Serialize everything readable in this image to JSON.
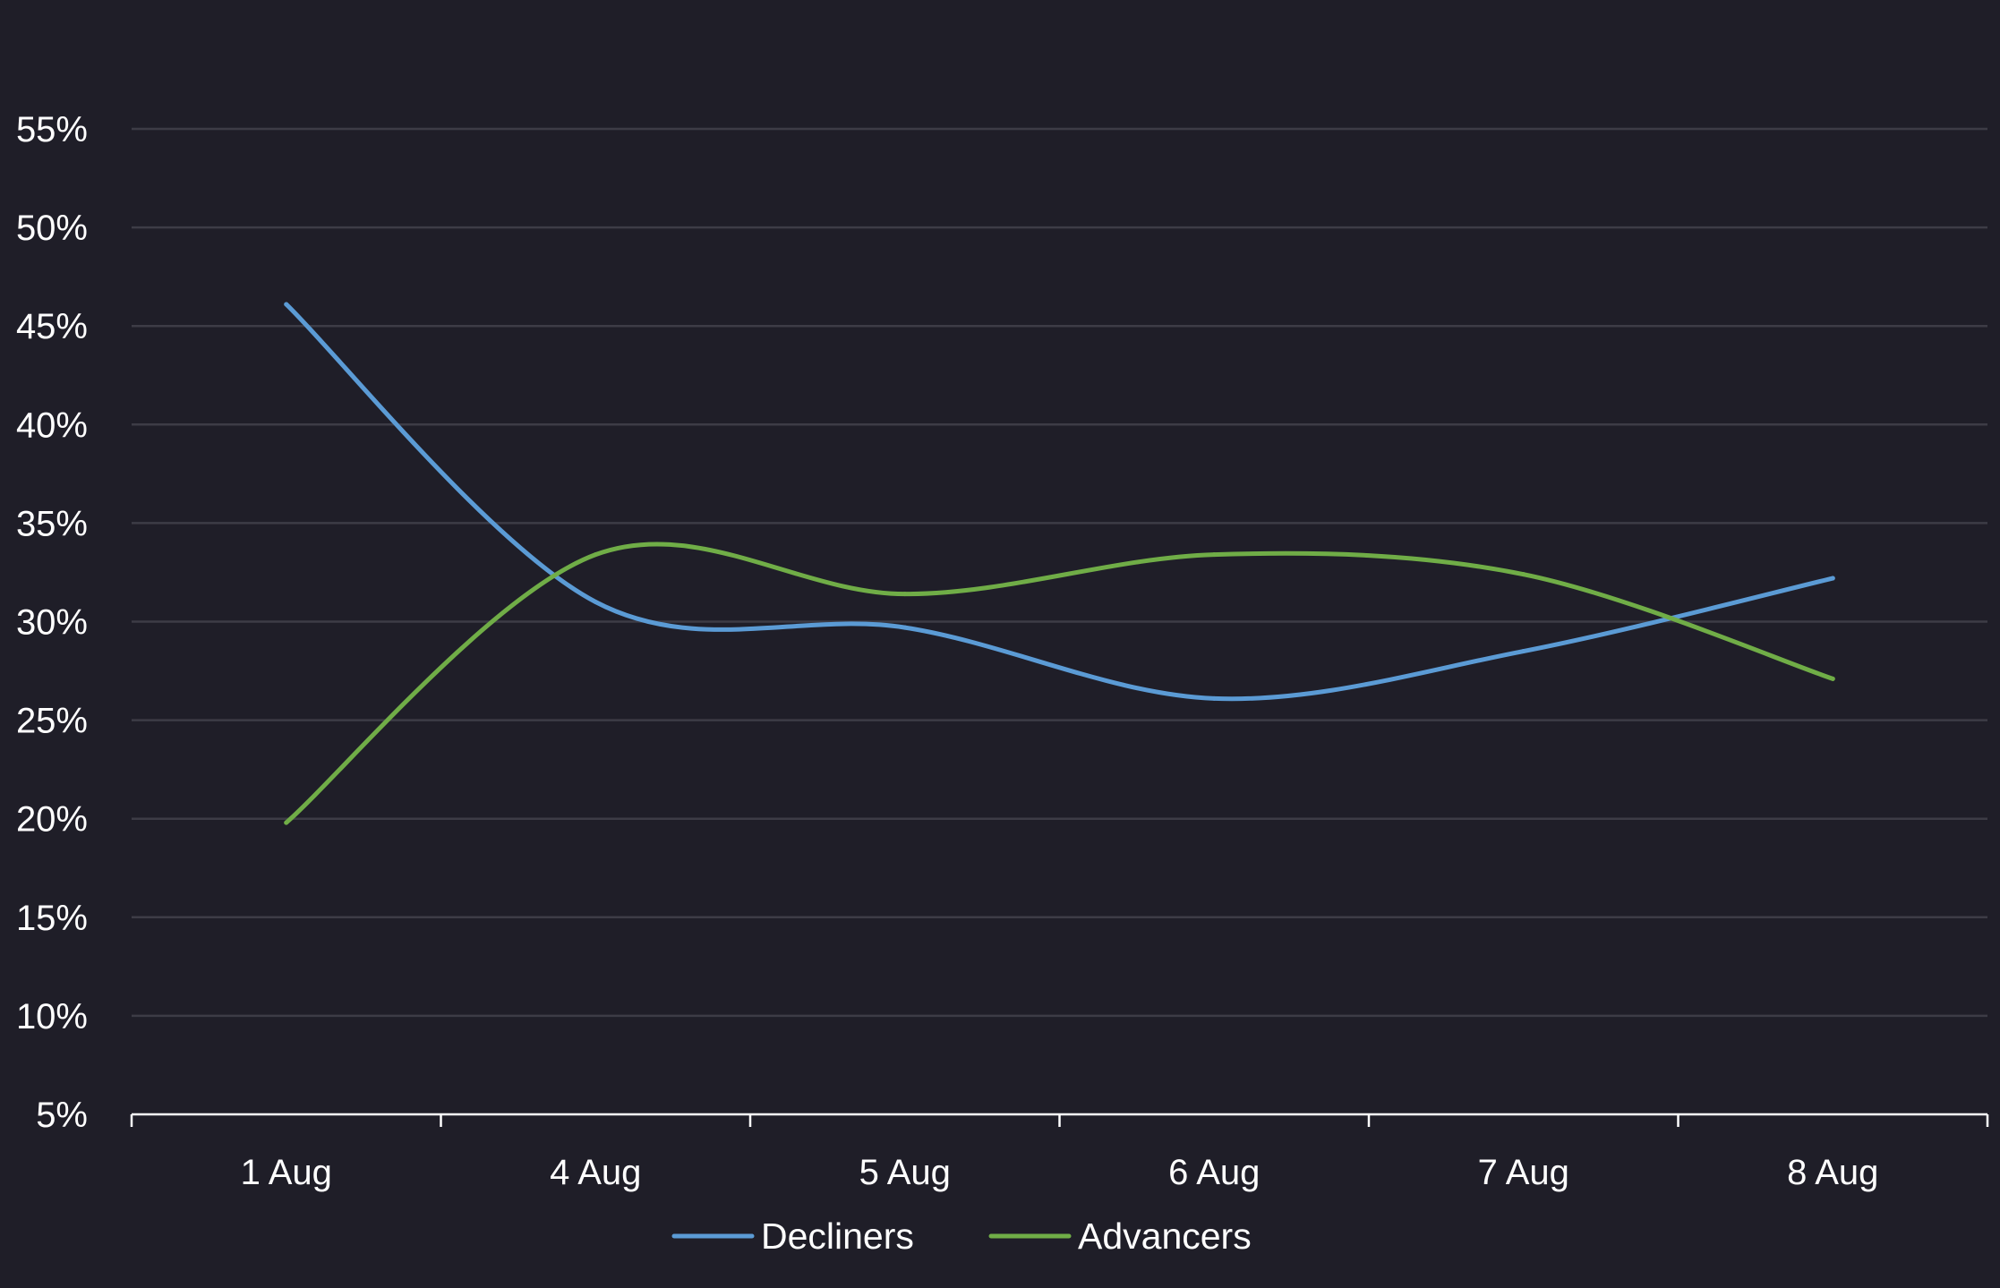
{
  "chart_data": {
    "type": "line",
    "smooth": true,
    "categories": [
      "1 Aug",
      "4 Aug",
      "5 Aug",
      "6 Aug",
      "7 Aug",
      "8 Aug"
    ],
    "y_ticks": [
      "5%",
      "10%",
      "15%",
      "20%",
      "25%",
      "30%",
      "35%",
      "40%",
      "45%",
      "50%",
      "55%"
    ],
    "ylim": [
      5,
      55
    ],
    "y_unit": "%",
    "grid": true,
    "legend_position": "bottom",
    "series": [
      {
        "name": "Decliners",
        "color": "#5b9bd5",
        "values": [
          46.1,
          31.0,
          29.7,
          26.1,
          28.5,
          32.2
        ]
      },
      {
        "name": "Advancers",
        "color": "#70ad47",
        "values": [
          19.8,
          33.4,
          31.4,
          33.4,
          32.4,
          27.1
        ]
      }
    ],
    "colors": {
      "background": "#1f1e28",
      "grid": "#3d3c46",
      "axis": "#ffffff",
      "text": "#ffffff"
    }
  }
}
